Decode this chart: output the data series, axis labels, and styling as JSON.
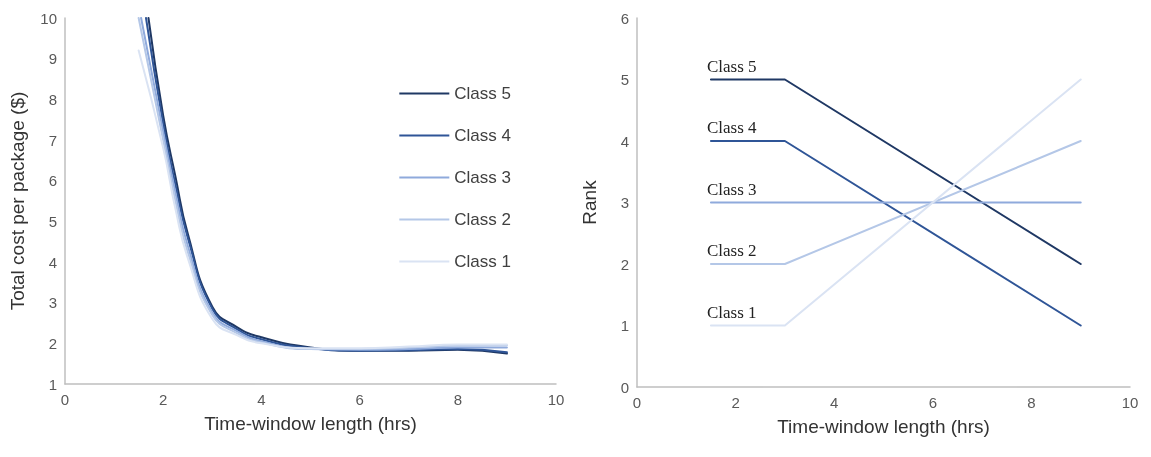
{
  "chart_data": [
    {
      "type": "line",
      "xlabel": "Time-window length (hrs)",
      "ylabel": "Total cost per package ($)",
      "xlim": [
        0,
        10
      ],
      "ylim": [
        1,
        10
      ],
      "xticks": [
        0,
        2,
        4,
        6,
        8,
        10
      ],
      "yticks": [
        1,
        2,
        3,
        4,
        5,
        6,
        7,
        8,
        9,
        10
      ],
      "grid": false,
      "marker": "none",
      "legend": "right",
      "series": [
        {
          "name": "Class 5",
          "color": "#1f3864",
          "x": [
            1.7,
            2,
            2.25,
            2.5,
            3,
            3.5,
            4,
            5,
            6,
            7,
            8,
            9
          ],
          "values": [
            10,
            7.6,
            6.1,
            4.7,
            2.9,
            2.4,
            2.15,
            1.9,
            1.82,
            1.82,
            1.84,
            1.75
          ]
        },
        {
          "name": "Class 4",
          "color": "#2f5597",
          "x": [
            1.65,
            2,
            2.25,
            2.5,
            3,
            3.5,
            4,
            5,
            6,
            7,
            8,
            9
          ],
          "values": [
            10,
            7.4,
            5.9,
            4.6,
            2.85,
            2.35,
            2.1,
            1.88,
            1.82,
            1.83,
            1.86,
            1.78
          ]
        },
        {
          "name": "Class 3",
          "color": "#8faadc",
          "x": [
            1.55,
            2,
            2.25,
            2.5,
            3,
            3.5,
            4,
            5,
            6,
            7,
            8,
            9
          ],
          "values": [
            10,
            7.2,
            5.7,
            4.4,
            2.75,
            2.3,
            2.05,
            1.86,
            1.84,
            1.86,
            1.9,
            1.9
          ]
        },
        {
          "name": "Class 2",
          "color": "#b4c7e7",
          "x": [
            1.5,
            2,
            2.25,
            2.5,
            3,
            3.5,
            4,
            5,
            6,
            7,
            8,
            9
          ],
          "values": [
            10,
            7.0,
            5.5,
            4.25,
            2.7,
            2.25,
            2.02,
            1.86,
            1.86,
            1.9,
            1.94,
            1.95
          ]
        },
        {
          "name": "Class 1",
          "color": "#dae3f3",
          "x": [
            1.5,
            2,
            2.25,
            2.5,
            3,
            3.5,
            4,
            5,
            6,
            7,
            8,
            9
          ],
          "values": [
            9.2,
            6.8,
            5.3,
            4.1,
            2.6,
            2.2,
            2.0,
            1.88,
            1.88,
            1.92,
            1.97,
            1.97
          ]
        }
      ]
    },
    {
      "type": "line",
      "xlabel": "Time-window length (hrs)",
      "ylabel": "Rank",
      "xlim": [
        0,
        10
      ],
      "ylim": [
        0,
        6
      ],
      "xticks": [
        0,
        2,
        4,
        6,
        8,
        10
      ],
      "yticks": [
        0,
        1,
        2,
        3,
        4,
        5,
        6
      ],
      "grid": false,
      "marker": "none",
      "series": [
        {
          "name": "Class 5",
          "color": "#1f3864",
          "x": [
            1.5,
            3,
            9
          ],
          "values": [
            5,
            5,
            2
          ]
        },
        {
          "name": "Class 4",
          "color": "#2f5597",
          "x": [
            1.5,
            3,
            9
          ],
          "values": [
            4,
            4,
            1
          ]
        },
        {
          "name": "Class 3",
          "color": "#8faadc",
          "x": [
            1.5,
            3,
            9
          ],
          "values": [
            3,
            3,
            3
          ]
        },
        {
          "name": "Class 2",
          "color": "#b4c7e7",
          "x": [
            1.5,
            3,
            9
          ],
          "values": [
            2,
            2,
            4
          ]
        },
        {
          "name": "Class 1",
          "color": "#dae3f3",
          "x": [
            1.5,
            3,
            9
          ],
          "values": [
            1,
            1,
            5
          ]
        }
      ]
    }
  ]
}
